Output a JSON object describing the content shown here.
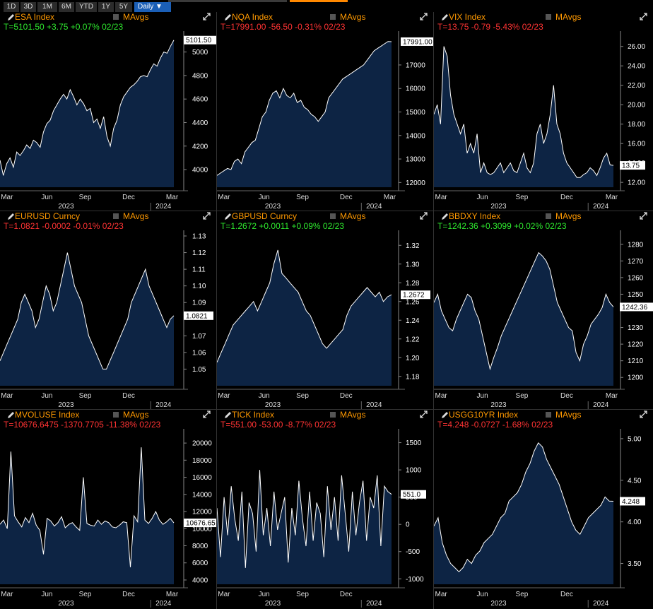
{
  "toolbar": {
    "ranges": [
      "1D",
      "3D",
      "1M",
      "6M",
      "YTD",
      "1Y",
      "5Y"
    ],
    "period": "Daily ▼"
  },
  "panels": [
    {
      "ticker": "ESA Index",
      "mavg": "MAvgs",
      "quote": "T=5101.50 +3.75 +0.07% 02/23",
      "dir": "up",
      "last": "5101.50",
      "yticks": [
        "4000",
        "4200",
        "4400",
        "4600",
        "4800",
        "5000"
      ],
      "xticks": [
        "Mar",
        "Jun",
        "Sep",
        "Dec",
        "Mar"
      ],
      "years": [
        "2023",
        "2024"
      ]
    },
    {
      "ticker": "NQA Index",
      "mavg": "MAvgs",
      "quote": "T=17991.00 -56.50 -0.31% 02/23",
      "dir": "down",
      "last": "17991.00",
      "yticks": [
        "12000",
        "13000",
        "14000",
        "15000",
        "16000",
        "17000"
      ],
      "xticks": [
        "Mar",
        "Jun",
        "Sep",
        "Dec",
        "Mar"
      ],
      "years": [
        "2023",
        "2024"
      ]
    },
    {
      "ticker": "VIX Index",
      "mavg": "MAvgs",
      "quote": "T=13.75 -0.79 -5.43% 02/23",
      "dir": "down",
      "last": "13.75",
      "yticks": [
        "12.00",
        "14.00",
        "16.00",
        "18.00",
        "20.00",
        "22.00",
        "24.00",
        "26.00"
      ],
      "xticks": [
        "Mar",
        "Jun",
        "Sep",
        "Dec",
        "Mar"
      ],
      "years": [
        "2023",
        "2024"
      ]
    },
    {
      "ticker": "EURUSD Curncy",
      "mavg": "MAvgs",
      "quote": "T=1.0821 -0.0002 -0.01% 02/23",
      "dir": "down",
      "last": "1.0821",
      "yticks": [
        "1.05",
        "1.06",
        "1.07",
        "1.09",
        "1.10",
        "1.11",
        "1.12",
        "1.13"
      ],
      "xticks": [
        "Mar",
        "Jun",
        "Sep",
        "Dec"
      ],
      "years": [
        "2023",
        "2024"
      ]
    },
    {
      "ticker": "GBPUSD Curncy",
      "mavg": "MAvgs",
      "quote": "T=1.2672 +0.0011 +0.09% 02/23",
      "dir": "up",
      "last": "1.2672",
      "yticks": [
        "1.18",
        "1.20",
        "1.22",
        "1.24",
        "1.26",
        "1.28",
        "1.30",
        "1.32"
      ],
      "xticks": [
        "Mar",
        "Jun",
        "Sep",
        "Dec"
      ],
      "years": [
        "2023",
        "2024"
      ]
    },
    {
      "ticker": "BBDXY Index",
      "mavg": "MAvgs",
      "quote": "T=1242.36 +0.3099 +0.02% 02/23",
      "dir": "up",
      "last": "1242.36",
      "yticks": [
        "1200",
        "1210",
        "1220",
        "1230",
        "1250",
        "1260",
        "1270",
        "1280"
      ],
      "xticks": [
        "Mar",
        "Jun",
        "Sep",
        "Dec",
        "Mar"
      ],
      "years": [
        "2023",
        "2024"
      ]
    },
    {
      "ticker": "MVOLUSE Index",
      "mavg": "MAvgs",
      "quote": "T=10676.6475 -1370.7705 -11.38% 02/23",
      "dir": "down",
      "last": "10676.65",
      "yticks": [
        "4000",
        "6000",
        "8000",
        "10000",
        "12000",
        "14000",
        "16000",
        "18000",
        "20000"
      ],
      "xticks": [
        "Mar",
        "Jun",
        "Sep",
        "Dec",
        "Mar"
      ],
      "years": [
        "2023",
        "2024"
      ]
    },
    {
      "ticker": "TICK Index",
      "mavg": "MAvgs",
      "quote": "T=551.00 -53.00 -8.77% 02/23",
      "dir": "down",
      "last": "551.0",
      "yticks": [
        "-1000",
        "-500",
        "0",
        "500",
        "1000",
        "1500"
      ],
      "xticks": [
        "Mar",
        "Jun",
        "Sep",
        "Dec"
      ],
      "years": [
        "2023",
        "2024"
      ]
    },
    {
      "ticker": "USGG10YR Index",
      "mavg": "MAvgs",
      "quote": "T=4.248 -0.0727 -1.68% 02/23",
      "dir": "down",
      "last": "4.248",
      "yticks": [
        "3.50",
        "4.00",
        "4.50",
        "5.00"
      ],
      "xticks": [
        "Mar",
        "Jun",
        "Sep",
        "Dec"
      ],
      "years": [
        "2023",
        "2024"
      ]
    }
  ],
  "chart_data": [
    {
      "type": "area",
      "title": "ESA Index",
      "ylim": [
        3850,
        5130
      ],
      "series": [
        {
          "values": [
            4080,
            3950,
            4050,
            4100,
            4020,
            4150,
            4120,
            4160,
            4210,
            4180,
            4250,
            4230,
            4190,
            4320,
            4390,
            4420,
            4500,
            4550,
            4600,
            4640,
            4600,
            4680,
            4620,
            4550,
            4600,
            4560,
            4500,
            4520,
            4400,
            4430,
            4350,
            4450,
            4280,
            4200,
            4350,
            4420,
            4550,
            4620,
            4660,
            4700,
            4720,
            4750,
            4790,
            4800,
            4790,
            4850,
            4900,
            4880,
            4950,
            5000,
            4990,
            5050,
            5101.5
          ]
        }
      ]
    },
    {
      "type": "area",
      "title": "NQA Index",
      "ylim": [
        11800,
        18200
      ],
      "series": [
        {
          "values": [
            12300,
            12400,
            12500,
            12600,
            12550,
            12900,
            13000,
            12800,
            13300,
            13500,
            13700,
            13800,
            14300,
            14800,
            15000,
            15500,
            15800,
            15900,
            15600,
            16000,
            15700,
            15600,
            15800,
            15400,
            15500,
            15200,
            15100,
            14900,
            14800,
            14600,
            14800,
            15000,
            15600,
            15800,
            16000,
            16200,
            16400,
            16500,
            16600,
            16700,
            16800,
            16900,
            17000,
            17200,
            17400,
            17600,
            17700,
            17800,
            17900,
            18000,
            17991
          ]
        }
      ]
    },
    {
      "type": "area",
      "title": "VIX Index",
      "ylim": [
        11.5,
        27
      ],
      "series": [
        {
          "values": [
            19,
            20,
            18,
            26,
            25,
            21,
            19,
            18,
            17,
            18,
            15,
            16,
            15,
            17,
            13,
            14,
            13,
            12.8,
            13,
            13.5,
            14,
            13,
            13.5,
            14,
            13.2,
            13,
            14,
            15,
            13.5,
            13,
            14,
            17,
            18,
            16,
            17,
            19,
            22,
            18,
            17,
            15,
            14,
            13.5,
            13,
            12.5,
            12.5,
            12.8,
            13,
            13.5,
            13.2,
            12.7,
            13.5,
            14.5,
            15,
            13.8,
            13.75
          ]
        }
      ]
    },
    {
      "type": "area",
      "title": "EURUSD Curncy",
      "ylim": [
        1.04,
        1.13
      ],
      "series": [
        {
          "values": [
            1.055,
            1.06,
            1.065,
            1.07,
            1.075,
            1.08,
            1.09,
            1.095,
            1.09,
            1.085,
            1.075,
            1.08,
            1.09,
            1.1,
            1.095,
            1.085,
            1.09,
            1.1,
            1.11,
            1.12,
            1.11,
            1.1,
            1.095,
            1.09,
            1.08,
            1.07,
            1.065,
            1.06,
            1.055,
            1.05,
            1.05,
            1.055,
            1.06,
            1.065,
            1.07,
            1.075,
            1.08,
            1.09,
            1.095,
            1.1,
            1.105,
            1.11,
            1.1,
            1.095,
            1.09,
            1.085,
            1.08,
            1.075,
            1.08,
            1.0821
          ]
        }
      ]
    },
    {
      "type": "area",
      "title": "GBPUSD Curncy",
      "ylim": [
        1.17,
        1.33
      ],
      "series": [
        {
          "values": [
            1.195,
            1.205,
            1.215,
            1.225,
            1.235,
            1.24,
            1.245,
            1.25,
            1.255,
            1.26,
            1.25,
            1.26,
            1.27,
            1.28,
            1.3,
            1.315,
            1.29,
            1.285,
            1.28,
            1.275,
            1.27,
            1.26,
            1.25,
            1.245,
            1.235,
            1.225,
            1.215,
            1.21,
            1.215,
            1.22,
            1.225,
            1.23,
            1.245,
            1.255,
            1.26,
            1.265,
            1.27,
            1.275,
            1.27,
            1.265,
            1.27,
            1.26,
            1.265,
            1.2672
          ]
        }
      ]
    },
    {
      "type": "area",
      "title": "BBDXY Index",
      "ylim": [
        1195,
        1285
      ],
      "series": [
        {
          "values": [
            1245,
            1250,
            1240,
            1235,
            1230,
            1228,
            1235,
            1240,
            1245,
            1250,
            1248,
            1240,
            1235,
            1225,
            1215,
            1205,
            1212,
            1218,
            1225,
            1230,
            1235,
            1240,
            1245,
            1250,
            1255,
            1260,
            1265,
            1270,
            1275,
            1273,
            1270,
            1265,
            1255,
            1245,
            1240,
            1235,
            1230,
            1228,
            1215,
            1210,
            1220,
            1225,
            1232,
            1235,
            1238,
            1242,
            1250,
            1245,
            1242.36
          ]
        }
      ]
    },
    {
      "type": "area",
      "title": "MVOLUSE Index",
      "ylim": [
        3500,
        21000
      ],
      "series": [
        {
          "values": [
            10500,
            11000,
            10000,
            19000,
            11500,
            10800,
            10200,
            11300,
            10700,
            11800,
            10400,
            9800,
            7000,
            11200,
            10900,
            10300,
            10700,
            11400,
            10100,
            10500,
            10700,
            10200,
            9800,
            16000,
            10600,
            10400,
            10300,
            11000,
            10500,
            10900,
            10700,
            10200,
            10100,
            10400,
            10800,
            10700,
            5500,
            11500,
            10800,
            19500,
            11000,
            10600,
            11200,
            12000,
            11000,
            10500,
            10800,
            11200,
            10676.6475
          ]
        }
      ]
    },
    {
      "type": "area",
      "title": "TICK Index",
      "ylim": [
        -1100,
        1650
      ],
      "series": [
        {
          "values": [
            300,
            -600,
            500,
            -200,
            700,
            100,
            -300,
            600,
            -800,
            400,
            200,
            -500,
            1000,
            -200,
            300,
            -400,
            600,
            -100,
            200,
            500,
            -700,
            300,
            -200,
            800,
            100,
            -400,
            600,
            -300,
            400,
            200,
            -600,
            700,
            -100,
            500,
            -300,
            900,
            200,
            -500,
            600,
            -200,
            400,
            800,
            -300,
            500,
            300,
            900,
            -400,
            700,
            600,
            551
          ]
        }
      ]
    },
    {
      "type": "area",
      "title": "USGG10YR Index",
      "ylim": [
        3.25,
        5.05
      ],
      "series": [
        {
          "values": [
            3.95,
            4.05,
            3.75,
            3.6,
            3.5,
            3.45,
            3.4,
            3.45,
            3.55,
            3.5,
            3.6,
            3.65,
            3.75,
            3.8,
            3.85,
            3.95,
            4.05,
            4.1,
            4.25,
            4.3,
            4.35,
            4.45,
            4.6,
            4.7,
            4.85,
            4.95,
            4.9,
            4.75,
            4.65,
            4.55,
            4.45,
            4.3,
            4.15,
            4.0,
            3.9,
            3.85,
            3.95,
            4.05,
            4.1,
            4.15,
            4.2,
            4.3,
            4.25,
            4.248
          ]
        }
      ]
    }
  ]
}
